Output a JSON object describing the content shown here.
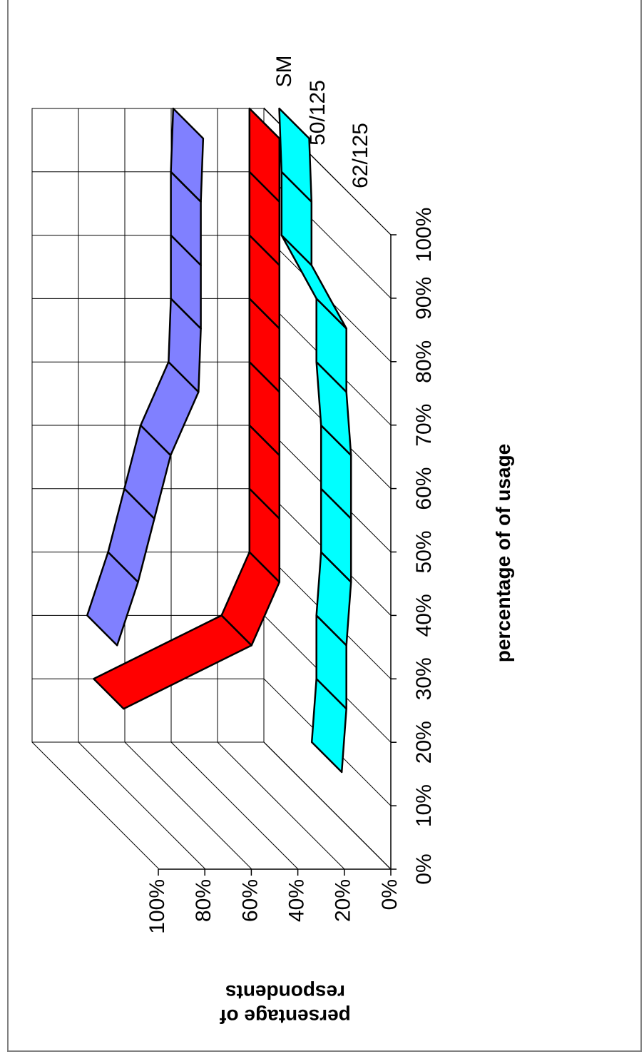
{
  "chart_data": {
    "type": "line",
    "chart_style": "3d-ribbon",
    "orientation": "rotated",
    "xlabel": "percentage of of usage",
    "ylabel": "persentage of respondents",
    "x_ticks": [
      "0%",
      "10%",
      "20%",
      "30%",
      "40%",
      "50%",
      "60%",
      "70%",
      "80%",
      "90%",
      "100%"
    ],
    "y_ticks": [
      "0%",
      "20%",
      "40%",
      "60%",
      "80%",
      "100%"
    ],
    "ylim": [
      0,
      100
    ],
    "x": [
      0,
      10,
      20,
      30,
      40,
      50,
      60,
      70,
      80,
      90,
      100
    ],
    "series": [
      {
        "name": "SM",
        "color": "#8080FF",
        "values": [
          null,
          null,
          76,
          67,
          60,
          53,
          41,
          40,
          40,
          40,
          39
        ]
      },
      {
        "name": "50/125",
        "color": "#FF0000",
        "values": [
          null,
          87,
          32,
          20,
          20,
          20,
          20,
          20,
          20,
          20,
          20
        ]
      },
      {
        "name": "62/125",
        "color": "#00FFFF",
        "values": [
          7,
          5,
          5,
          3,
          3,
          3,
          5,
          5,
          20,
          20,
          21
        ]
      }
    ],
    "grid": true,
    "legend": "none"
  }
}
